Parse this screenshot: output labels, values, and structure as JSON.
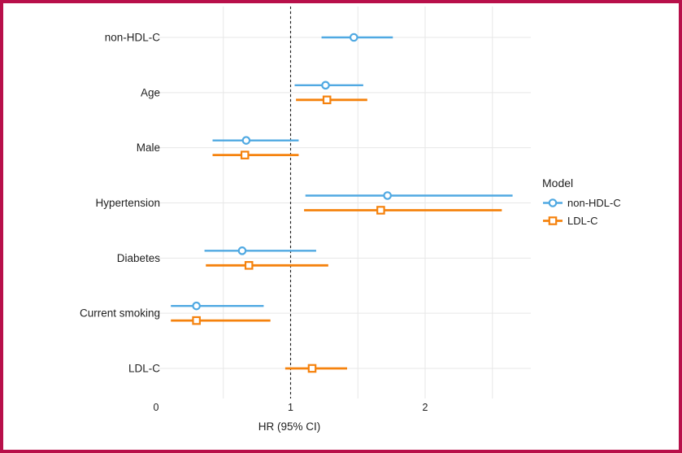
{
  "frame": {
    "border_color": "#B8104A",
    "background": "#ffffff"
  },
  "chart_data": {
    "type": "scatter",
    "subtype": "forest-plot-dot-with-ci",
    "title": "",
    "xlabel": "HR (95% CI)",
    "ylabel": "",
    "x_ticks": [
      0,
      1,
      2
    ],
    "xlim": [
      0,
      2.8
    ],
    "gridlines_x": [
      0.5,
      1.0,
      1.5,
      2.0,
      2.5
    ],
    "grid_on": true,
    "grid_color": "#E7E7E7",
    "reference_line_x": 1,
    "legend": {
      "title": "Model",
      "position": "right"
    },
    "series": [
      {
        "id": "non_hdl_c",
        "name": "non-HDL-C",
        "marker": "circle",
        "color": "#50A9E2"
      },
      {
        "id": "ldl_c",
        "name": "LDL-C",
        "marker": "square",
        "color": "#F5820D"
      }
    ],
    "rows": [
      {
        "label": "non-HDL-C",
        "estimates": {
          "non_hdl_c": {
            "hr": 1.47,
            "lo": 1.23,
            "hi": 1.76
          },
          "ldl_c": null
        }
      },
      {
        "label": "Age",
        "estimates": {
          "non_hdl_c": {
            "hr": 1.26,
            "lo": 1.03,
            "hi": 1.54
          },
          "ldl_c": {
            "hr": 1.27,
            "lo": 1.04,
            "hi": 1.57
          }
        }
      },
      {
        "label": "Male",
        "estimates": {
          "non_hdl_c": {
            "hr": 0.67,
            "lo": 0.42,
            "hi": 1.06
          },
          "ldl_c": {
            "hr": 0.66,
            "lo": 0.42,
            "hi": 1.06
          }
        }
      },
      {
        "label": "Hypertension",
        "estimates": {
          "non_hdl_c": {
            "hr": 1.72,
            "lo": 1.11,
            "hi": 2.65
          },
          "ldl_c": {
            "hr": 1.67,
            "lo": 1.1,
            "hi": 2.57
          }
        }
      },
      {
        "label": "Diabetes",
        "estimates": {
          "non_hdl_c": {
            "hr": 0.64,
            "lo": 0.36,
            "hi": 1.19
          },
          "ldl_c": {
            "hr": 0.69,
            "lo": 0.37,
            "hi": 1.28
          }
        }
      },
      {
        "label": "Current smoking",
        "estimates": {
          "non_hdl_c": {
            "hr": 0.3,
            "lo": 0.11,
            "hi": 0.8
          },
          "ldl_c": {
            "hr": 0.3,
            "lo": 0.11,
            "hi": 0.85
          }
        }
      },
      {
        "label": "LDL-C",
        "estimates": {
          "non_hdl_c": null,
          "ldl_c": {
            "hr": 1.16,
            "lo": 0.96,
            "hi": 1.42
          }
        }
      }
    ]
  }
}
